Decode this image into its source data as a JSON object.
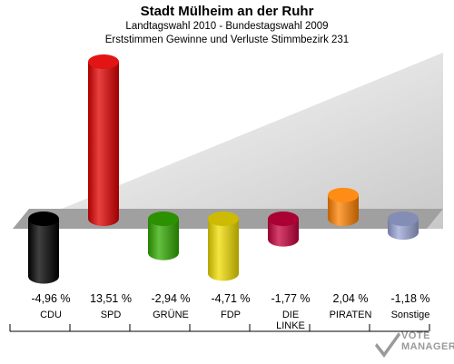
{
  "header": {
    "title": "Stadt Mülheim an der Ruhr",
    "subtitle1": "Landtagswahl 2010 - Bundestagswahl 2009",
    "subtitle2": "Erststimmen Gewinne und Verluste Stimmbezirk 231"
  },
  "logo": {
    "line1": "VOTE",
    "line2": "MANAGER"
  },
  "chart_data": {
    "type": "bar",
    "categories": [
      "CDU",
      "SPD",
      "GRÜNE",
      "FDP",
      "DIE LINKE",
      "PIRATEN",
      "Sonstige"
    ],
    "category_lines": [
      [
        "CDU"
      ],
      [
        "SPD"
      ],
      [
        "GRÜNE"
      ],
      [
        "FDP"
      ],
      [
        "DIE",
        "LINKE"
      ],
      [
        "PIRATEN"
      ],
      [
        "Sonstige"
      ]
    ],
    "values": [
      -4.96,
      13.51,
      -2.94,
      -4.71,
      -1.77,
      2.04,
      -1.18
    ],
    "value_labels": [
      "-4,96 %",
      "13,51 %",
      "-2,94 %",
      "-4,71 %",
      "-1,77 %",
      "2,04 %",
      "-1,18 %"
    ],
    "colors": [
      "#000000",
      "#e10000",
      "#32aa00",
      "#f0dc00",
      "#c8003c",
      "#ff8200",
      "#9aa6d6"
    ],
    "title": "Stadt Mülheim an der Ruhr",
    "xlabel": "",
    "ylabel": "",
    "grid": false
  }
}
